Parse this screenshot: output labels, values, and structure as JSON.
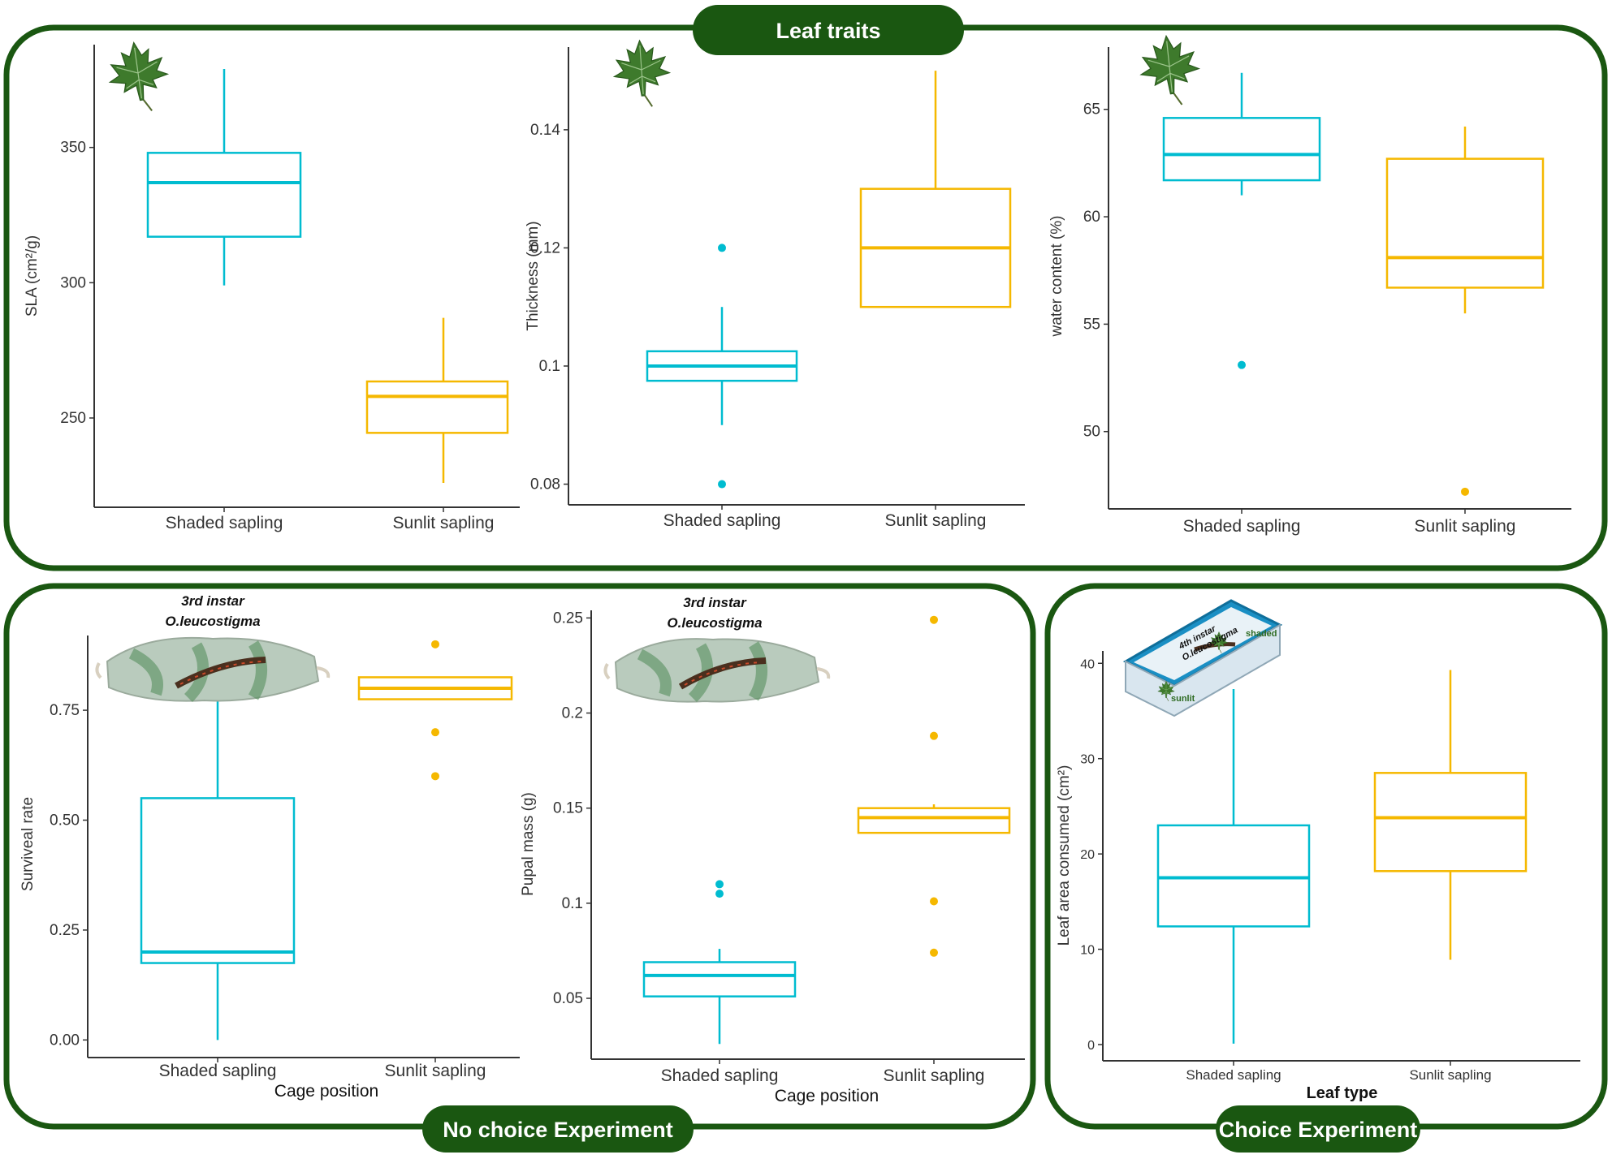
{
  "sections": {
    "leaf_traits": "Leaf traits",
    "no_choice": "No choice Experiment",
    "choice": "Choice Experiment"
  },
  "annotations": {
    "larva_a_line1": "3rd instar",
    "larva_a_line2": "O.leucostigma",
    "larva_b_line1": "3rd instar",
    "larva_b_line2": "O.leucostigma",
    "box_line1": "4th instar",
    "box_line2": "O.leucostigma",
    "box_shaded": "shaded",
    "box_sunlit": "sunlit"
  },
  "colors": {
    "frame": "#1a5711",
    "shaded": "#00bcd0",
    "sunlit": "#f5b800",
    "leaf": "#3e7a2c"
  },
  "chart_data": [
    {
      "id": "sla",
      "type": "box",
      "ylabel": "SLA (cm²/g)",
      "xlabel": "",
      "categories": [
        "Shaded sapling",
        "Sunlit sapling"
      ],
      "yticks": [
        250,
        300,
        350
      ],
      "ylim": [
        217,
        388
      ],
      "boxes": [
        {
          "q1": 317,
          "median": 337,
          "q3": 348,
          "whisker_low": 299,
          "whisker_high": 379,
          "outliers": []
        },
        {
          "q1": 244.5,
          "median": 258,
          "q3": 263.5,
          "whisker_low": 226,
          "whisker_high": 287,
          "outliers": []
        }
      ]
    },
    {
      "id": "thickness",
      "type": "box",
      "ylabel": "Thickness (mm)",
      "xlabel": "",
      "categories": [
        "Shaded sapling",
        "Sunlit sapling"
      ],
      "yticks": [
        0.08,
        0.1,
        0.12,
        0.14
      ],
      "ylim": [
        0.0765,
        0.154
      ],
      "boxes": [
        {
          "q1": 0.0975,
          "median": 0.1,
          "q3": 0.1025,
          "whisker_low": 0.09,
          "whisker_high": 0.11,
          "outliers": [
            0.12,
            0.08
          ]
        },
        {
          "q1": 0.11,
          "median": 0.12,
          "q3": 0.13,
          "whisker_low": 0.11,
          "whisker_high": 0.15,
          "outliers": []
        }
      ]
    },
    {
      "id": "water",
      "type": "box",
      "ylabel": "water content (%)",
      "xlabel": "",
      "categories": [
        "Shaded sapling",
        "Sunlit sapling"
      ],
      "yticks": [
        50,
        55,
        60,
        65
      ],
      "ylim": [
        46.4,
        67.9
      ],
      "boxes": [
        {
          "q1": 61.7,
          "median": 62.9,
          "q3": 64.6,
          "whisker_low": 61.0,
          "whisker_high": 66.7,
          "outliers": [
            53.1
          ]
        },
        {
          "q1": 56.7,
          "median": 58.1,
          "q3": 62.7,
          "whisker_low": 55.5,
          "whisker_high": 64.2,
          "outliers": [
            47.2
          ]
        }
      ]
    },
    {
      "id": "survival",
      "type": "box",
      "ylabel": "Surviveal rate",
      "xlabel": "Cage position",
      "categories": [
        "Shaded sapling",
        "Sunlit sapling"
      ],
      "yticks": [
        "0.00",
        "0.25",
        "0.50",
        "0.75"
      ],
      "ylim": [
        -0.04,
        0.92
      ],
      "boxes": [
        {
          "q1": 0.175,
          "median": 0.2,
          "q3": 0.55,
          "whisker_low": 0.0,
          "whisker_high": 0.8,
          "outliers": []
        },
        {
          "q1": 0.775,
          "median": 0.8,
          "q3": 0.825,
          "whisker_low": 0.775,
          "whisker_high": 0.825,
          "outliers": [
            0.9,
            0.7,
            0.6
          ]
        }
      ]
    },
    {
      "id": "pupal",
      "type": "box",
      "ylabel": "Pupal mass (g)",
      "xlabel": "Cage position",
      "categories": [
        "Shaded sapling",
        "Sunlit sapling"
      ],
      "yticks": [
        0.05,
        0.1,
        0.15,
        0.2,
        0.25
      ],
      "ylim": [
        0.018,
        0.254
      ],
      "boxes": [
        {
          "q1": 0.051,
          "median": 0.062,
          "q3": 0.069,
          "whisker_low": 0.026,
          "whisker_high": 0.076,
          "outliers": [
            0.11,
            0.105
          ]
        },
        {
          "q1": 0.137,
          "median": 0.145,
          "q3": 0.15,
          "whisker_low": 0.137,
          "whisker_high": 0.152,
          "outliers": [
            0.249,
            0.188,
            0.101,
            0.074
          ]
        }
      ]
    },
    {
      "id": "consumed",
      "type": "box",
      "ylabel": "Leaf area consumed (cm²)",
      "xlabel": "Leaf type",
      "categories": [
        "Shaded sapling",
        "Sunlit sapling"
      ],
      "yticks": [
        0,
        10,
        20,
        30,
        40
      ],
      "ylim": [
        -1.7,
        41.3
      ],
      "boxes": [
        {
          "q1": 12.4,
          "median": 17.5,
          "q3": 23.0,
          "whisker_low": 0.1,
          "whisker_high": 37.3,
          "outliers": []
        },
        {
          "q1": 18.2,
          "median": 23.8,
          "q3": 28.5,
          "whisker_low": 8.9,
          "whisker_high": 39.3,
          "outliers": []
        }
      ]
    }
  ]
}
